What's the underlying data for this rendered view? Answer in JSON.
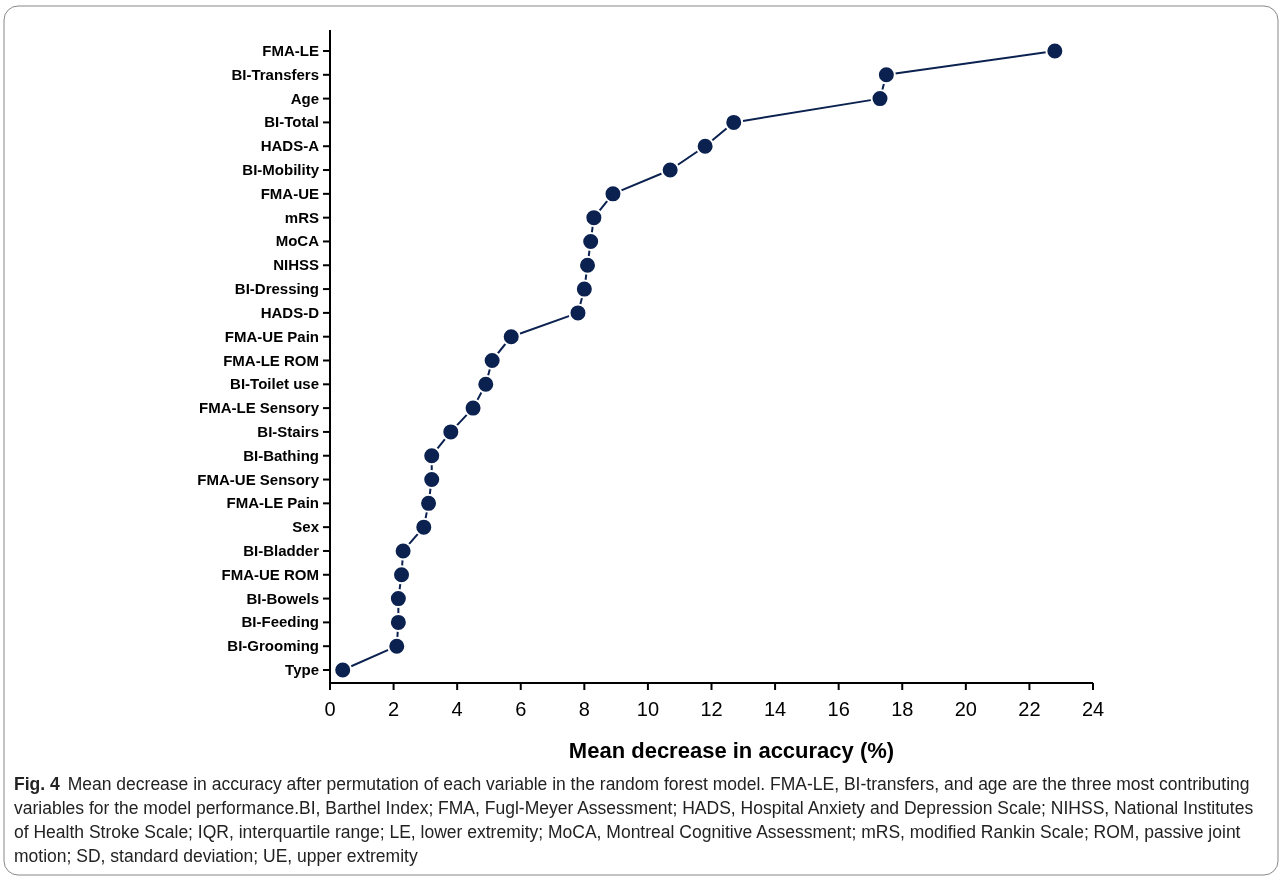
{
  "chart_data": {
    "type": "line",
    "orientation": "horizontal",
    "xlabel": "Mean decrease in accuracy (%)",
    "categories": [
      "FMA-LE",
      "BI-Transfers",
      "Age",
      "BI-Total",
      "HADS-A",
      "BI-Mobility",
      "FMA-UE",
      "mRS",
      "MoCA",
      "NIHSS",
      "BI-Dressing",
      "HADS-D",
      "FMA-UE Pain",
      "FMA-LE ROM",
      "BI-Toilet use",
      "FMA-LE Sensory",
      "BI-Stairs",
      "BI-Bathing",
      "FMA-UE Sensory",
      "FMA-LE Pain",
      "Sex",
      "BI-Bladder",
      "FMA-UE ROM",
      "BI-Bowels",
      "BI-Feeding",
      "BI-Grooming",
      "Type"
    ],
    "series": [
      {
        "color": "#0b214f",
        "values": [
          22.8,
          17.5,
          17.3,
          12.7,
          11.8,
          10.7,
          8.9,
          8.3,
          8.2,
          8.1,
          8.0,
          7.8,
          5.7,
          5.1,
          4.9,
          4.5,
          3.8,
          3.2,
          3.2,
          3.1,
          2.95,
          2.3,
          2.25,
          2.15,
          2.15,
          2.1,
          0.4
        ]
      }
    ],
    "xlim": [
      0,
      24
    ],
    "xticks": [
      0,
      2,
      4,
      6,
      8,
      10,
      12,
      14,
      16,
      18,
      20,
      22,
      24
    ],
    "marker": "circle",
    "line_style": "solid",
    "grid": false,
    "annotations": [
      "Fig. 4",
      "Mean decrease in accuracy after permutation of each variable in the random forest model. FMA-LE, BI-transfers, and age are the three most contributing variables for the model performance.BI, Barthel Index; FMA, Fugl-Meyer Assessment; HADS, Hospital Anxiety and Depression Scale; NIHSS, National Institutes of Health Stroke Scale; IQR, interquartile range; LE, lower extremity; MoCA, Montreal Cognitive Assessment; mRS, modified Rankin Scale; ROM, passive joint motion; SD, standard deviation; UE, upper extremity"
    ]
  }
}
